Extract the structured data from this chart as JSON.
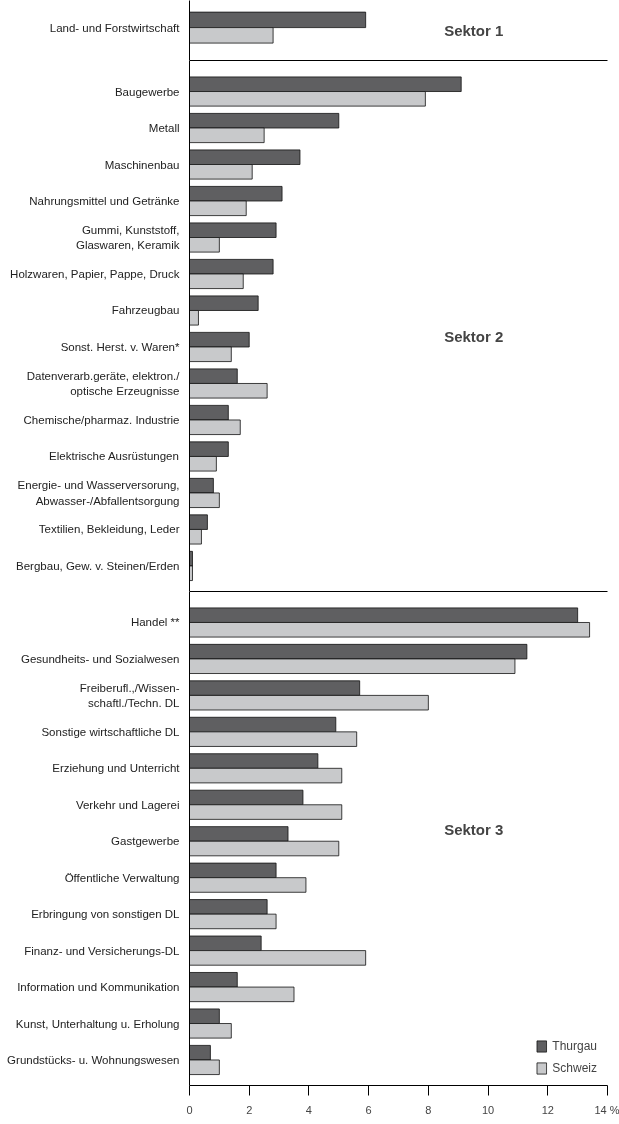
{
  "chart_data": [
    {
      "type": "bar",
      "orientation": "horizontal",
      "categories": [
        "Land- und Forstwirtschaft"
      ],
      "series": [
        {
          "color": "#5f5f61",
          "values": [
            5.9
          ]
        },
        {
          "color": "#c8c9cb",
          "values": [
            2.8
          ]
        }
      ],
      "xlim": [
        0,
        14
      ],
      "tick_labels": "y",
      "annotations": [
        "Sektor 1"
      ]
    },
    {
      "type": "bar",
      "orientation": "horizontal",
      "categories": [
        "Baugewerbe",
        "Metall",
        "Maschinenbau",
        "Nahrungsmittel und Getränke",
        "Gummi, Kunststoff,\nGlaswaren, Keramik",
        "Holzwaren, Papier, Pappe, Druck",
        "Fahrzeugbau",
        "Sonst. Herst. v. Waren*",
        "Datenverarb.geräte, elektron./\noptische Erzeugnisse",
        "Chemische/pharmaz. Industrie",
        "Elektrische Ausrüstungen",
        "Energie- und Wasserversorung,\nAbwasser-/Abfallentsorgung",
        "Textilien, Bekleidung, Leder",
        "Bergbau, Gew. v. Steinen/Erden"
      ],
      "series": [
        {
          "color": "#5f5f61",
          "values": [
            9.1,
            5.0,
            3.7,
            3.1,
            2.9,
            2.8,
            2.3,
            2.0,
            1.6,
            1.3,
            1.3,
            0.8,
            0.6,
            0.1
          ]
        },
        {
          "color": "#c8c9cb",
          "values": [
            7.9,
            2.5,
            2.1,
            1.9,
            1.0,
            1.8,
            0.3,
            1.4,
            2.6,
            1.7,
            0.9,
            1.0,
            0.4,
            0.1
          ]
        }
      ],
      "xlim": [
        0,
        14
      ],
      "tick_labels": "y",
      "annotations": [
        "Sektor 2"
      ]
    },
    {
      "type": "bar",
      "orientation": "horizontal",
      "categories": [
        "Handel **",
        "Gesundheits- und Sozialwesen",
        "Freiberufl.,/Wissen-\nschaftl./Techn. DL",
        "Sonstige wirtschaftliche DL",
        "Erziehung und Unterricht",
        "Verkehr und Lagerei",
        "Gastgewerbe",
        "Öffentliche Verwaltung",
        "Erbringung von sonstigen DL",
        "Finanz- und Versicherungs-DL",
        "Information und Kommunikation",
        "Kunst, Unterhaltung u. Erholung",
        "Grundstücks- u. Wohnungswesen"
      ],
      "series": [
        {
          "name": "Thurgau",
          "color": "#5f5f61",
          "values": [
            13.0,
            11.3,
            5.7,
            4.9,
            4.3,
            3.8,
            3.3,
            2.9,
            2.6,
            2.4,
            1.6,
            1.0,
            0.7
          ]
        },
        {
          "name": "Schweiz",
          "color": "#c8c9cb",
          "values": [
            13.4,
            10.9,
            8.0,
            5.6,
            5.1,
            5.1,
            5.0,
            3.9,
            2.9,
            5.9,
            3.5,
            1.4,
            1.0
          ]
        }
      ],
      "xlim": [
        0,
        14
      ],
      "xticks": [
        0,
        2,
        4,
        6,
        8,
        10,
        12,
        {
          "value": 14,
          "label": "14 %"
        }
      ],
      "legend": "bottom right",
      "annotations": [
        "Sektor 3"
      ]
    }
  ]
}
